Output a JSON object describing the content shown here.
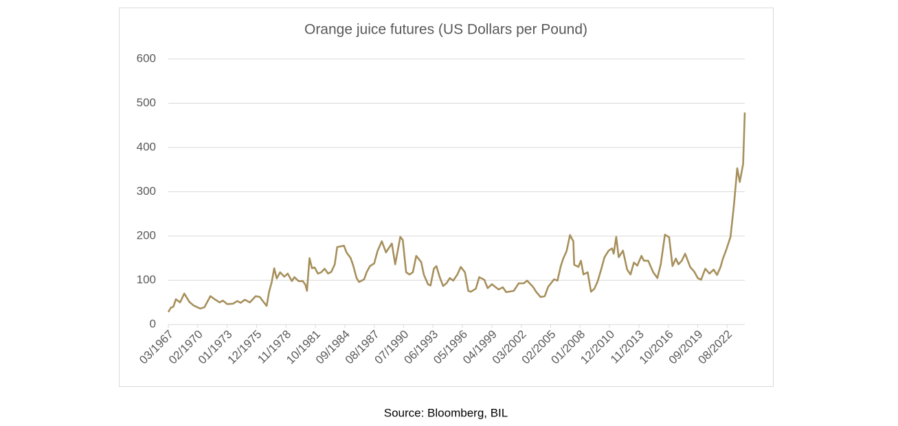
{
  "chart_data": {
    "type": "line",
    "title": "Orange juice futures (US Dollars per Pound)",
    "source": "Source: Bloomberg, BIL",
    "color": "#a68f5b",
    "grid": true,
    "ylim": [
      0,
      600
    ],
    "yticks": [
      0,
      100,
      200,
      300,
      400,
      500,
      600
    ],
    "xticks": [
      "03/1967",
      "02/1970",
      "01/1973",
      "12/1975",
      "11/1978",
      "10/1981",
      "09/1984",
      "08/1987",
      "07/1990",
      "06/1993",
      "05/1996",
      "04/1999",
      "03/2002",
      "02/2005",
      "01/2008",
      "12/2010",
      "11/2013",
      "10/2016",
      "09/2019",
      "08/2022"
    ],
    "x": [
      "03/1967",
      "06/1967",
      "09/1967",
      "12/1967",
      "05/1968",
      "10/1968",
      "04/1969",
      "09/1969",
      "05/1970",
      "10/1970",
      "05/1971",
      "11/1971",
      "04/1972",
      "08/1972",
      "01/1973",
      "08/1973",
      "01/1974",
      "05/1974",
      "10/1974",
      "04/1975",
      "11/1975",
      "04/1976",
      "07/1976",
      "12/1976",
      "03/1977",
      "06/1977",
      "09/1977",
      "12/1977",
      "04/1978",
      "09/1978",
      "01/1979",
      "06/1979",
      "09/1979",
      "02/1980",
      "07/1980",
      "10/1980",
      "12/1980",
      "03/1981",
      "06/1981",
      "09/1981",
      "01/1982",
      "05/1982",
      "09/1982",
      "01/1983",
      "05/1983",
      "09/1983",
      "12/1983",
      "08/1984",
      "11/1984",
      "04/1985",
      "07/1985",
      "11/1985",
      "02/1986",
      "08/1986",
      "11/1986",
      "03/1987",
      "08/1987",
      "12/1987",
      "05/1988",
      "10/1988",
      "05/1989",
      "09/1989",
      "03/1990",
      "06/1990",
      "10/1990",
      "02/1991",
      "06/1991",
      "10/1991",
      "04/1992",
      "07/1992",
      "12/1992",
      "03/1993",
      "07/1993",
      "10/1993",
      "02/1994",
      "06/1994",
      "10/1994",
      "02/1995",
      "06/1995",
      "11/1995",
      "03/1996",
      "08/1996",
      "12/1996",
      "03/1997",
      "09/1997",
      "01/1998",
      "07/1998",
      "11/1998",
      "04/1999",
      "12/1999",
      "05/2000",
      "09/2000",
      "06/2001",
      "12/2001",
      "06/2002",
      "10/2002",
      "05/2003",
      "09/2003",
      "02/2004",
      "07/2004",
      "11/2004",
      "06/2005",
      "10/2005",
      "02/2006",
      "05/2006",
      "09/2006",
      "01/2007",
      "05/2007",
      "06/2007",
      "11/2007",
      "02/2008",
      "05/2008",
      "10/2008",
      "02/2009",
      "06/2009",
      "10/2009",
      "02/2010",
      "06/2010",
      "11/2010",
      "03/2011",
      "05/2011",
      "08/2011",
      "11/2011",
      "04/2012",
      "09/2012",
      "01/2013",
      "05/2013",
      "09/2013",
      "02/2014",
      "05/2014",
      "10/2014",
      "04/2015",
      "09/2015",
      "01/2016",
      "06/2016",
      "11/2016",
      "03/2017",
      "07/2017",
      "10/2017",
      "02/2018",
      "06/2018",
      "12/2018",
      "05/2019",
      "09/2019",
      "01/2020",
      "06/2020",
      "11/2020",
      "04/2021",
      "08/2021",
      "12/2021",
      "03/2022",
      "07/2022",
      "12/2022",
      "04/2023",
      "08/2023",
      "11/2023",
      "03/2024",
      "05/2024"
    ],
    "values": [
      28,
      38,
      40,
      57,
      50,
      70,
      51,
      43,
      36,
      39,
      64,
      56,
      50,
      54,
      46,
      47,
      53,
      49,
      56,
      50,
      64,
      62,
      54,
      42,
      75,
      95,
      127,
      104,
      118,
      108,
      115,
      98,
      107,
      98,
      98,
      90,
      76,
      150,
      127,
      129,
      115,
      118,
      126,
      115,
      119,
      136,
      175,
      178,
      163,
      150,
      133,
      105,
      96,
      102,
      118,
      132,
      138,
      166,
      188,
      163,
      183,
      136,
      198,
      191,
      118,
      113,
      118,
      155,
      141,
      113,
      91,
      88,
      126,
      132,
      107,
      87,
      93,
      105,
      99,
      113,
      130,
      118,
      76,
      74,
      81,
      107,
      101,
      82,
      91,
      79,
      84,
      73,
      76,
      93,
      93,
      99,
      85,
      73,
      62,
      64,
      85,
      102,
      99,
      132,
      149,
      166,
      202,
      188,
      135,
      130,
      144,
      113,
      118,
      74,
      81,
      98,
      124,
      152,
      167,
      172,
      160,
      198,
      152,
      167,
      124,
      113,
      140,
      133,
      155,
      144,
      144,
      118,
      105,
      136,
      203,
      197,
      132,
      149,
      136,
      144,
      160,
      130,
      119,
      105,
      101,
      126,
      115,
      124,
      112,
      129,
      149,
      169,
      198,
      268,
      353,
      322,
      363,
      479
    ]
  }
}
